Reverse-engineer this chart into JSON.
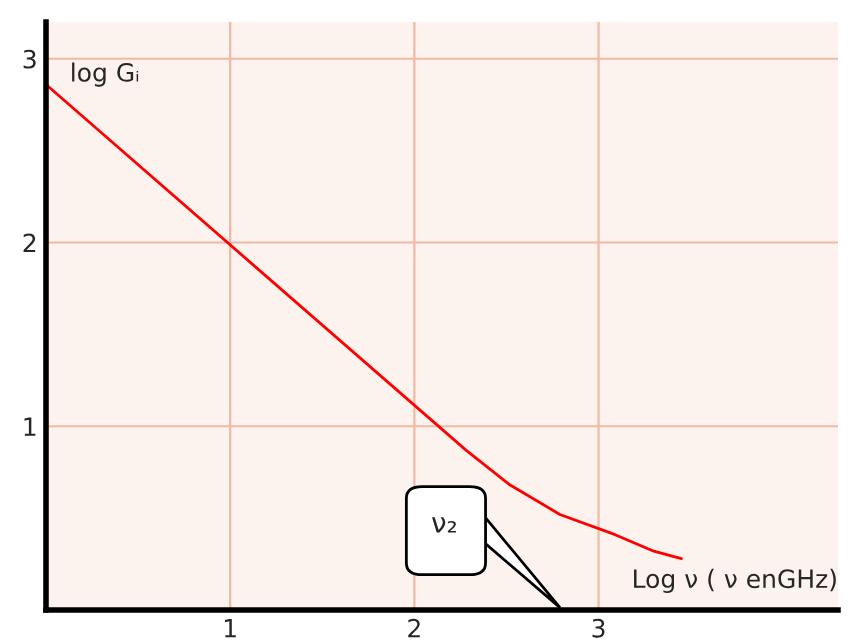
{
  "chart_data": {
    "type": "line",
    "xlabel": "Log ν ( ν enGHz)",
    "ylabel": "log Gᵢ",
    "xlim": [
      0,
      4.3
    ],
    "ylim": [
      0,
      3.2
    ],
    "xticks": [
      1,
      2,
      3
    ],
    "yticks": [
      1,
      2,
      3
    ],
    "grid": true,
    "marker": "none",
    "line_style": "solid",
    "series": [
      {
        "color": "#ff0000",
        "x": [
          0,
          2.28,
          2.52,
          2.79,
          3.09,
          3.3,
          3.45
        ],
        "values": [
          2.86,
          0.87,
          0.68,
          0.52,
          0.41,
          0.32,
          0.28
        ]
      }
    ],
    "annotations": [
      "ν₂"
    ]
  }
}
